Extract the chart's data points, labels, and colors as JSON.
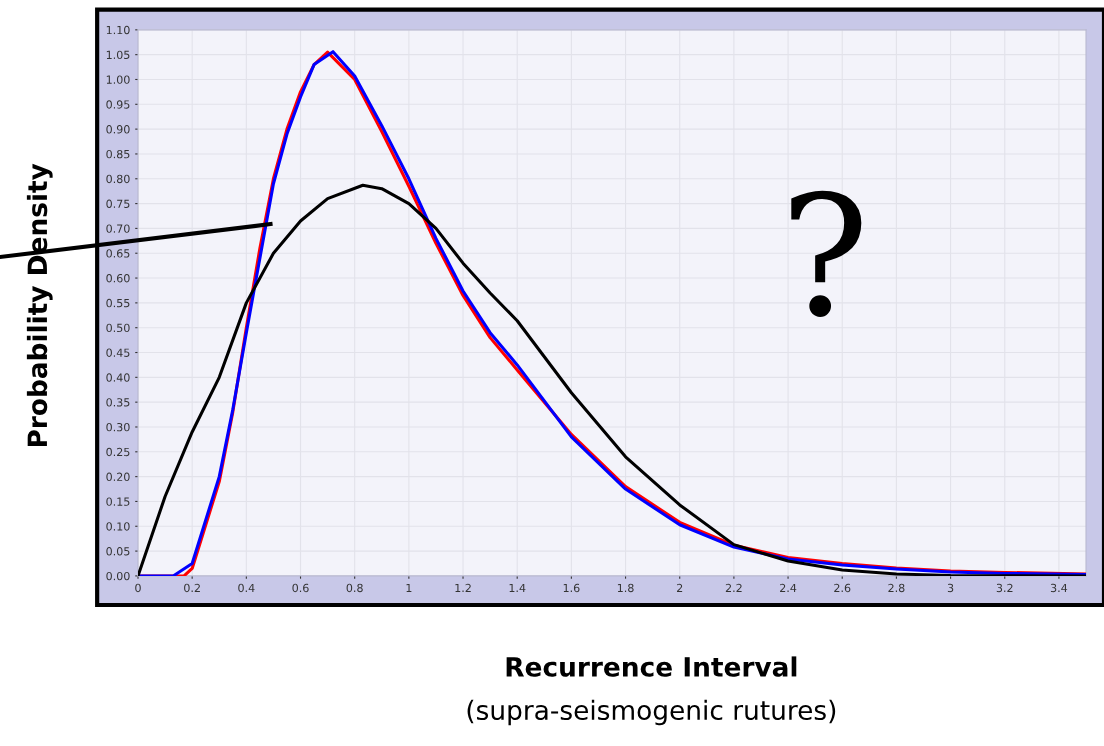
{
  "chart_data": {
    "type": "line",
    "xlabel": "Recurrence Interval",
    "ylabel": "Probability Density",
    "annotations": [
      "(supra-seismogenic rutures)",
      "?"
    ],
    "xlim": [
      0,
      3.5
    ],
    "xticks": [
      0,
      0.2,
      0.4,
      0.6,
      0.8,
      1,
      1.2,
      1.4,
      1.6,
      1.8,
      2,
      2.2,
      2.4,
      2.6,
      2.8,
      3,
      3.2,
      3.4
    ],
    "ylim": [
      0,
      1.1
    ],
    "yticks": [
      {
        "value": 0,
        "label": "0.00"
      },
      {
        "value": 0.05,
        "label": "0.05"
      },
      {
        "value": 0.1,
        "label": "0.10"
      },
      {
        "value": 0.15,
        "label": "0.15"
      },
      {
        "value": 0.2,
        "label": "0.20"
      },
      {
        "value": 0.25,
        "label": "0.25"
      },
      {
        "value": 0.3,
        "label": "0.30"
      },
      {
        "value": 0.35,
        "label": "0.35"
      },
      {
        "value": 0.4,
        "label": "0.40"
      },
      {
        "value": 0.45,
        "label": "0.45"
      },
      {
        "value": 0.5,
        "label": "0.50"
      },
      {
        "value": 0.55,
        "label": "0.55"
      },
      {
        "value": 0.6,
        "label": "0.60"
      },
      {
        "value": 0.65,
        "label": "0.65"
      },
      {
        "value": 0.7,
        "label": "0.70"
      },
      {
        "value": 0.75,
        "label": "0.75"
      },
      {
        "value": 0.8,
        "label": "0.80"
      },
      {
        "value": 0.85,
        "label": "0.85"
      },
      {
        "value": 0.9,
        "label": "0.90"
      },
      {
        "value": 0.95,
        "label": "0.95"
      },
      {
        "value": 1,
        "label": "1.00"
      },
      {
        "value": 1.05,
        "label": "1.05"
      },
      {
        "value": 1.1,
        "label": "1.10"
      }
    ],
    "grid": true,
    "marker": "none",
    "line_style": "solid",
    "series": [
      {
        "color": "#ff0000",
        "x": [
          0,
          0.17,
          0.2,
          0.3,
          0.35,
          0.4,
          0.45,
          0.5,
          0.55,
          0.6,
          0.65,
          0.7,
          0.8,
          0.9,
          1.0,
          1.1,
          1.2,
          1.3,
          1.4,
          1.6,
          1.8,
          2.0,
          2.2,
          2.4,
          2.6,
          2.8,
          3.0,
          3.2,
          3.5
        ],
        "values": [
          0,
          0,
          0.015,
          0.19,
          0.33,
          0.5,
          0.66,
          0.8,
          0.9,
          0.975,
          1.03,
          1.055,
          1.0,
          0.895,
          0.785,
          0.67,
          0.565,
          0.48,
          0.415,
          0.285,
          0.18,
          0.108,
          0.062,
          0.037,
          0.025,
          0.016,
          0.01,
          0.007,
          0.004
        ]
      },
      {
        "color": "#0000ff",
        "x": [
          0,
          0.13,
          0.2,
          0.3,
          0.35,
          0.4,
          0.45,
          0.5,
          0.55,
          0.6,
          0.65,
          0.72,
          0.8,
          0.9,
          1.0,
          1.1,
          1.2,
          1.3,
          1.4,
          1.6,
          1.8,
          2.0,
          2.2,
          2.4,
          2.6,
          2.8,
          3.0,
          3.2,
          3.5
        ],
        "values": [
          0,
          0,
          0.025,
          0.2,
          0.335,
          0.49,
          0.64,
          0.79,
          0.89,
          0.965,
          1.03,
          1.056,
          1.007,
          0.907,
          0.8,
          0.68,
          0.574,
          0.49,
          0.425,
          0.28,
          0.175,
          0.103,
          0.058,
          0.034,
          0.022,
          0.014,
          0.008,
          0.005,
          0.003
        ]
      },
      {
        "color": "#000000",
        "x": [
          0,
          0.1,
          0.2,
          0.3,
          0.4,
          0.5,
          0.6,
          0.7,
          0.83,
          0.9,
          1.0,
          1.1,
          1.2,
          1.3,
          1.4,
          1.6,
          1.8,
          2.0,
          2.2,
          2.4,
          2.6,
          2.8,
          3.0,
          3.5
        ],
        "values": [
          0,
          0.16,
          0.29,
          0.4,
          0.55,
          0.65,
          0.715,
          0.76,
          0.787,
          0.78,
          0.75,
          0.7,
          0.63,
          0.57,
          0.514,
          0.369,
          0.24,
          0.143,
          0.063,
          0.03,
          0.012,
          0.004,
          0.001,
          0
        ]
      }
    ]
  }
}
